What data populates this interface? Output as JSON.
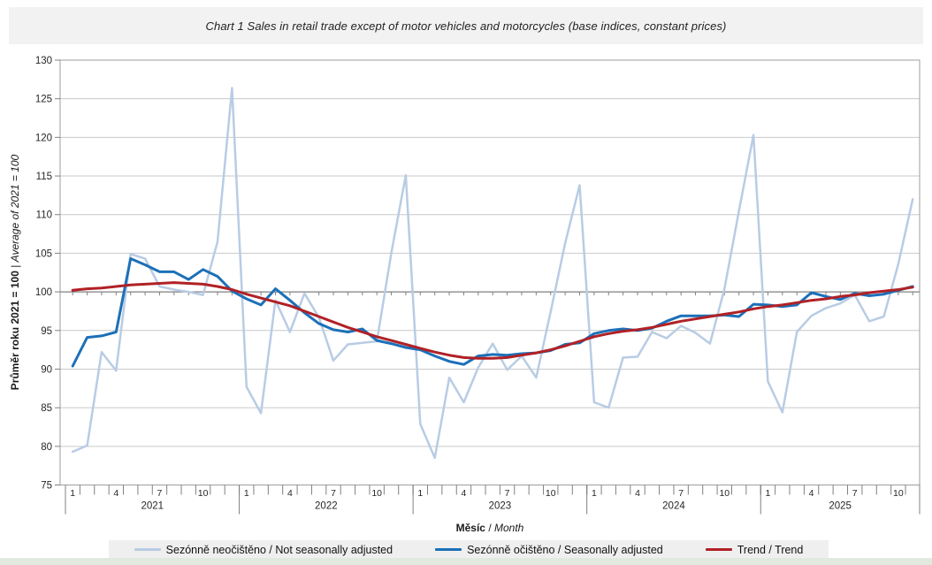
{
  "chart_data": {
    "type": "line",
    "title": "Chart 1 Sales in retail trade except of motor vehicles and motorcycles (base indices, constant prices)",
    "y_axis": {
      "label": "Průměr roku 2021 = 100 | Average of 2021 = 100",
      "label_bold": "Průměr roku 2021 = 100",
      "label_sep": " | ",
      "label_italic": "Average of 2021 = 100",
      "min": 75,
      "max": 130,
      "step": 5,
      "tick_labels": [
        75,
        80,
        85,
        90,
        95,
        100,
        105,
        110,
        115,
        120,
        125,
        130
      ]
    },
    "x_axis": {
      "label": "Měsíc / Month",
      "label_bold": "Měsíc",
      "label_sep": " / ",
      "label_italic": "Month",
      "years": [
        2021,
        2022,
        2023,
        2024,
        2025
      ],
      "month_tick_labels": [
        1,
        4,
        7,
        10
      ],
      "months_per_year": 12,
      "start": "2021-01",
      "end": "2025-11"
    },
    "grid": "horizontal",
    "legend_position": "bottom",
    "baseline_value": 100,
    "series": [
      {
        "name": "Sezónně neočištěno / Not seasonally adjusted",
        "color": "#b8cce4",
        "width": 2.5,
        "values": [
          79.3,
          80.1,
          92.2,
          89.8,
          104.9,
          104.3,
          100.7,
          100.3,
          100.0,
          99.6,
          106.5,
          126.4,
          87.7,
          84.3,
          98.9,
          94.8,
          99.8,
          96.7,
          91.1,
          93.2,
          93.4,
          93.6,
          105.0,
          115.1,
          82.9,
          78.5,
          88.9,
          85.7,
          90.2,
          93.3,
          89.9,
          91.7,
          88.9,
          97.4,
          106.3,
          113.8,
          85.7,
          85.0,
          91.5,
          91.6,
          94.8,
          94.0,
          95.6,
          94.7,
          93.3,
          100.4,
          110.5,
          120.3,
          88.4,
          84.4,
          94.8,
          96.9,
          97.9,
          98.5,
          99.6,
          96.2,
          96.8,
          103.6,
          112.0
        ]
      },
      {
        "name": "Sezónně očištěno / Seasonally adjusted",
        "color": "#1c70b8",
        "width": 3,
        "values": [
          90.4,
          94.1,
          94.3,
          94.8,
          104.3,
          103.5,
          102.6,
          102.6,
          101.6,
          102.9,
          102.0,
          100.1,
          99.1,
          98.3,
          100.4,
          98.9,
          97.3,
          95.9,
          95.1,
          94.8,
          95.2,
          93.7,
          93.3,
          92.8,
          92.5,
          91.7,
          91.0,
          90.6,
          91.7,
          91.9,
          91.8,
          92.0,
          92.1,
          92.4,
          93.2,
          93.4,
          94.6,
          95.0,
          95.2,
          95.0,
          95.3,
          96.2,
          96.9,
          96.9,
          96.9,
          97.0,
          96.8,
          98.4,
          98.3,
          98.1,
          98.3,
          99.9,
          99.4,
          99.0,
          99.8,
          99.5,
          99.7,
          100.2,
          100.7
        ]
      },
      {
        "name": "Trend / Trend",
        "color": "#b02126",
        "width": 3,
        "values": [
          100.2,
          100.4,
          100.5,
          100.7,
          100.9,
          101.0,
          101.1,
          101.2,
          101.1,
          101.0,
          100.7,
          100.3,
          99.7,
          99.2,
          98.7,
          98.2,
          97.5,
          96.8,
          96.1,
          95.4,
          94.8,
          94.2,
          93.7,
          93.2,
          92.7,
          92.2,
          91.8,
          91.5,
          91.4,
          91.4,
          91.5,
          91.8,
          92.1,
          92.5,
          93.0,
          93.6,
          94.2,
          94.6,
          94.9,
          95.1,
          95.4,
          95.8,
          96.2,
          96.5,
          96.8,
          97.1,
          97.4,
          97.8,
          98.1,
          98.3,
          98.6,
          98.9,
          99.1,
          99.4,
          99.6,
          99.9,
          100.1,
          100.3,
          100.6
        ]
      }
    ]
  },
  "colors": {
    "title_bar_bg": "#f2f2f2",
    "legend_bg": "#efefef",
    "footer_strip": "#e2eadf",
    "gridline": "#c9c9c9",
    "axis_line": "#808080",
    "plot_border": "#9e9e9e",
    "text": "#1a1a1a"
  }
}
